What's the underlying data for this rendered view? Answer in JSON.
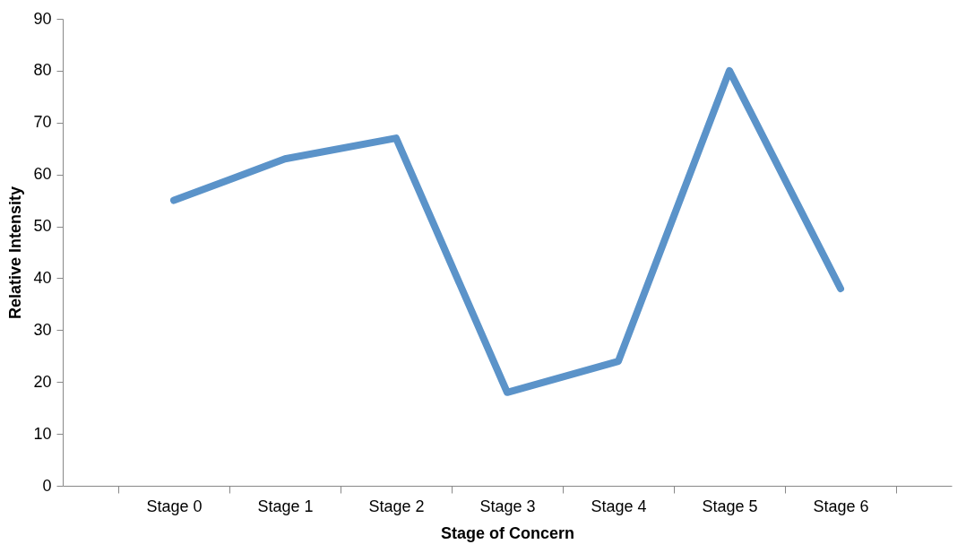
{
  "chart_data": {
    "type": "line",
    "xlabel": "Stage of Concern",
    "ylabel": "Relative Intensity",
    "categories": [
      "Stage 0",
      "Stage 1",
      "Stage 2",
      "Stage 3",
      "Stage 4",
      "Stage 5",
      "Stage 6"
    ],
    "series": [
      {
        "color": "#5b93c9",
        "values": [
          55,
          63,
          67,
          18,
          24,
          80,
          38
        ]
      }
    ],
    "ylim": [
      0,
      90
    ],
    "yticks": [
      0,
      10,
      20,
      30,
      40,
      50,
      60,
      70,
      80,
      90
    ],
    "grid": false,
    "marker": "none",
    "line_style": "solid"
  }
}
